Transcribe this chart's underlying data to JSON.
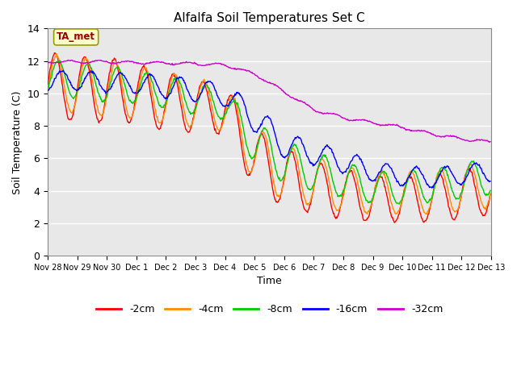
{
  "title": "Alfalfa Soil Temperatures Set C",
  "xlabel": "Time",
  "ylabel": "Soil Temperature (C)",
  "ylim": [
    0,
    14
  ],
  "xlim_days": [
    0,
    15
  ],
  "yticks": [
    0,
    2,
    4,
    6,
    8,
    10,
    12,
    14
  ],
  "xtick_labels": [
    "Nov 28",
    "Nov 29",
    "Nov 30",
    "Dec 1",
    "Dec 2",
    "Dec 3",
    "Dec 4",
    "Dec 5",
    "Dec 6",
    "Dec 7",
    "Dec 8",
    "Dec 9",
    "Dec 10",
    "Dec 11",
    "Dec 12",
    "Dec 13"
  ],
  "annotation_text": "TA_met",
  "annotation_box_color": "#FFFFCC",
  "annotation_text_color": "#990000",
  "legend_labels": [
    "-2cm",
    "-4cm",
    "-8cm",
    "-16cm",
    "-32cm"
  ],
  "colors": {
    "-2cm": "#FF0000",
    "-4cm": "#FF8C00",
    "-8cm": "#00CC00",
    "-16cm": "#0000FF",
    "-32cm": "#CC00CC"
  },
  "background_color": "#FFFFFF",
  "plot_bg_color": "#E8E8E8",
  "grid_color": "#FFFFFF",
  "pts_per_day": 48,
  "total_days": 15
}
